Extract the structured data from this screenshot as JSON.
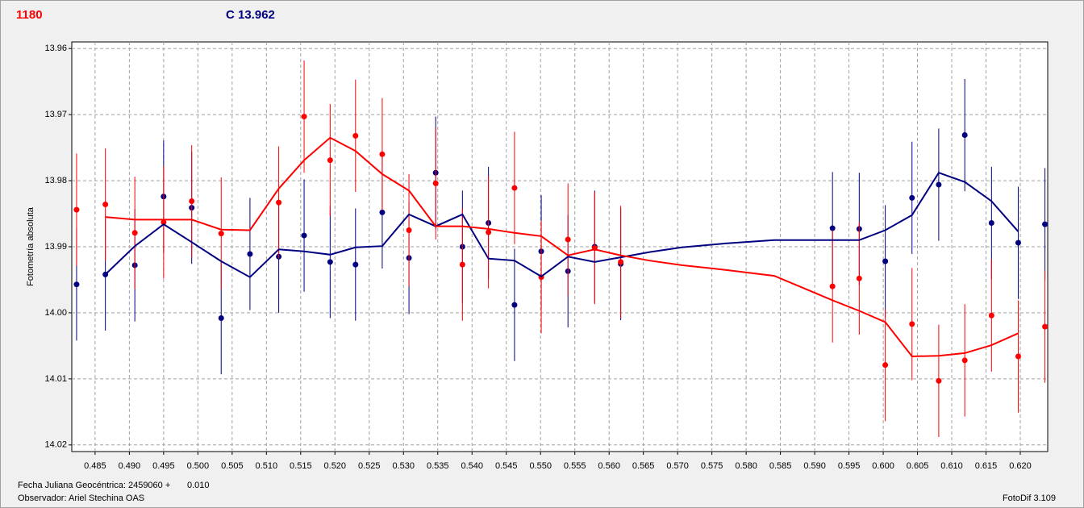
{
  "chart_data": {
    "type": "errorbar",
    "title": "1180",
    "title_color": "#ff0000",
    "subtitle": "C 13.962",
    "subtitle_color": "#000080",
    "ylabel": "Fotometría absoluta",
    "xlabel": "Fecha Juliana Geocéntrica: 2459060 +",
    "annotations": [
      "0.010",
      "Observador: Ariel Stechina OAS",
      "FotoDif 3.109"
    ],
    "grid": true,
    "xlim": [
      0.4816,
      0.624
    ],
    "ylim": [
      14.021,
      13.959
    ],
    "xticks": [
      0.485,
      {
        "value": 0.49,
        "label": "0.490"
      },
      0.495,
      {
        "value": 0.5,
        "label": "0.500"
      },
      0.505,
      {
        "value": 0.51,
        "label": "0.510"
      },
      0.515,
      {
        "value": 0.52,
        "label": "0.520"
      },
      0.525,
      {
        "value": 0.53,
        "label": "0.530"
      },
      0.535,
      {
        "value": 0.54,
        "label": "0.540"
      },
      0.545,
      {
        "value": 0.55,
        "label": "0.550"
      },
      0.555,
      {
        "value": 0.56,
        "label": "0.560"
      },
      0.565,
      {
        "value": 0.57,
        "label": "0.570"
      },
      0.575,
      {
        "value": 0.58,
        "label": "0.580"
      },
      0.585,
      {
        "value": 0.59,
        "label": "0.590"
      },
      0.595,
      {
        "value": 0.6,
        "label": "0.600"
      },
      0.605,
      {
        "value": 0.61,
        "label": "0.610"
      },
      0.615,
      {
        "value": 0.62,
        "label": "0.620"
      }
    ],
    "yticks": [
      13.96,
      13.97,
      13.98,
      13.99,
      {
        "value": 14.0,
        "label": "14.00"
      },
      14.01,
      14.02
    ],
    "series": [
      {
        "color": "#000080",
        "x": [
          0.4823,
          0.4865,
          0.4908,
          0.495,
          0.4991,
          0.5034,
          0.5076,
          0.5118,
          0.5155,
          0.5193,
          0.523,
          0.5269,
          0.5308,
          0.5347,
          0.5386,
          0.5424,
          0.5462,
          0.5501,
          0.554,
          0.5579,
          0.5617,
          0.5926,
          0.5965,
          0.6003,
          0.6042,
          0.6081,
          0.6119,
          0.6158,
          0.6197,
          0.6236
        ],
        "values": [
          13.9957,
          13.9942,
          13.9928,
          13.9824,
          13.9841,
          14.0008,
          13.9911,
          13.9915,
          13.9883,
          13.9923,
          13.9927,
          13.9848,
          13.9917,
          13.9788,
          13.99,
          13.9864,
          13.9988,
          13.9907,
          13.9937,
          13.99,
          13.9926,
          13.9872,
          13.9873,
          13.9922,
          13.9826,
          13.9806,
          13.9731,
          13.9864,
          13.9894,
          13.9866
        ],
        "errors": [
          0.0085,
          0.0085,
          0.0085,
          0.0085,
          0.0085,
          0.0085,
          0.0085,
          0.0085,
          0.0085,
          0.0085,
          0.0085,
          0.0085,
          0.0085,
          0.0085,
          0.0085,
          0.0085,
          0.0085,
          0.0085,
          0.0085,
          0.0085,
          0.0085,
          0.0085,
          0.0085,
          0.0085,
          0.0085,
          0.0085,
          0.0085,
          0.0085,
          0.0085,
          0.0085
        ]
      },
      {
        "color": "#ff0000",
        "x": [
          0.4823,
          0.4865,
          0.4908,
          0.495,
          0.4991,
          0.5034,
          0.5118,
          0.5155,
          0.5193,
          0.523,
          0.5269,
          0.5308,
          0.5347,
          0.5386,
          0.5424,
          0.5462,
          0.5501,
          0.554,
          0.5579,
          0.5617,
          0.5926,
          0.5965,
          0.6003,
          0.6042,
          0.6081,
          0.6119,
          0.6158,
          0.6197,
          0.6236
        ],
        "values": [
          13.9844,
          13.9836,
          13.9879,
          13.9863,
          13.9831,
          13.988,
          13.9833,
          13.9703,
          13.9769,
          13.9732,
          13.976,
          13.9875,
          13.9804,
          13.9927,
          13.9878,
          13.9811,
          13.9946,
          13.9889,
          13.9902,
          13.9923,
          13.996,
          13.9948,
          14.0079,
          14.0017,
          14.0103,
          14.0072,
          14.0004,
          14.0066,
          14.0021
        ],
        "errors": [
          0.0085,
          0.0085,
          0.0085,
          0.0085,
          0.0085,
          0.0085,
          0.0085,
          0.0085,
          0.0085,
          0.0085,
          0.0085,
          0.0085,
          0.0085,
          0.0085,
          0.0085,
          0.0085,
          0.0085,
          0.0085,
          0.0085,
          0.0085,
          0.0085,
          0.0085,
          0.0085,
          0.0085,
          0.0085,
          0.0085,
          0.0085,
          0.0085,
          0.0085
        ]
      }
    ],
    "lines": [
      {
        "color": "#000080",
        "x": [
          0.4865,
          0.4908,
          0.495,
          0.4991,
          0.5034,
          0.5076,
          0.5118,
          0.5155,
          0.5193,
          0.523,
          0.5269,
          0.5308,
          0.5347,
          0.5386,
          0.5424,
          0.5462,
          0.5501,
          0.554,
          0.5579,
          0.5617,
          0.5659,
          0.5706,
          0.577,
          0.5841,
          0.5926,
          0.5965,
          0.6003,
          0.6042,
          0.6081,
          0.6119,
          0.6158,
          0.6197
        ],
        "values": [
          13.9942,
          13.9899,
          13.9866,
          13.9893,
          13.9922,
          13.9946,
          13.9904,
          13.9907,
          13.9912,
          13.9901,
          13.9899,
          13.9851,
          13.9869,
          13.9851,
          13.9918,
          13.9921,
          13.9945,
          13.9915,
          13.9923,
          13.9916,
          13.9908,
          13.9901,
          13.9895,
          13.989,
          13.989,
          13.989,
          13.9875,
          13.9852,
          13.9788,
          13.9802,
          13.9831,
          13.9877
        ]
      },
      {
        "color": "#ff0000",
        "x": [
          0.4865,
          0.4908,
          0.495,
          0.4991,
          0.5034,
          0.5076,
          0.5118,
          0.5155,
          0.5193,
          0.523,
          0.5269,
          0.5308,
          0.5347,
          0.5386,
          0.5424,
          0.5462,
          0.5501,
          0.554,
          0.5579,
          0.5617,
          0.5659,
          0.5706,
          0.577,
          0.5841,
          0.5926,
          0.5965,
          0.6003,
          0.6042,
          0.6081,
          0.6119,
          0.6158,
          0.6197
        ],
        "values": [
          13.9855,
          13.9859,
          13.9859,
          13.9859,
          13.9874,
          13.9875,
          13.9812,
          13.9769,
          13.9735,
          13.9755,
          13.979,
          13.9815,
          13.9869,
          13.9869,
          13.9873,
          13.9879,
          13.9884,
          13.9913,
          13.9904,
          13.9913,
          13.9921,
          13.9928,
          13.9935,
          13.9944,
          13.9981,
          13.9997,
          14.0014,
          14.0066,
          14.0065,
          14.0061,
          14.0049,
          14.0031
        ]
      }
    ]
  }
}
